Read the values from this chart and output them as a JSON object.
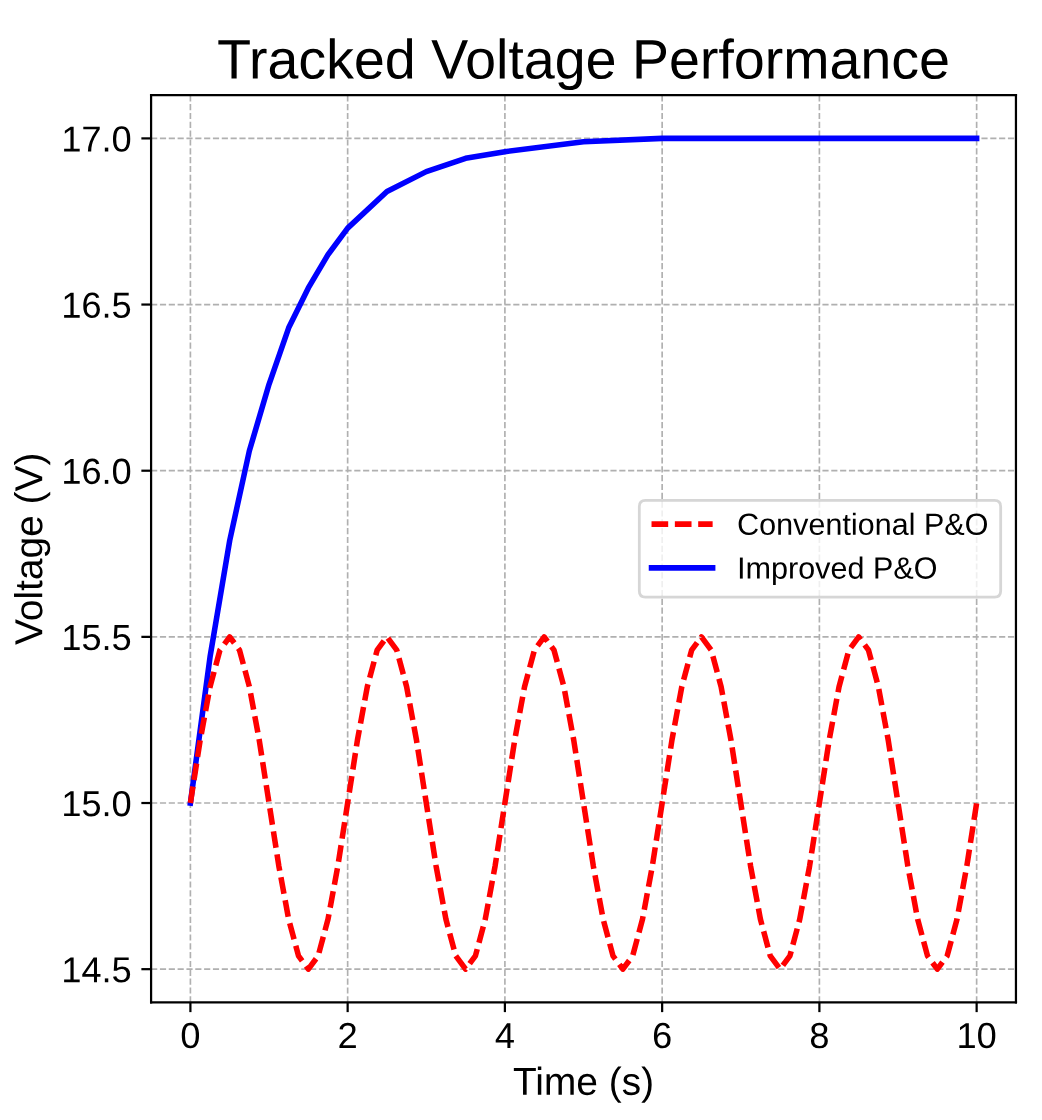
{
  "chart_data": {
    "type": "line",
    "title": "Tracked Voltage Performance",
    "xlabel": "Time (s)",
    "ylabel": "Voltage (V)",
    "xlim": [
      -0.5,
      10.5
    ],
    "ylim": [
      14.4,
      17.13
    ],
    "xticks": [
      0,
      2,
      4,
      6,
      8,
      10
    ],
    "yticks": [
      14.5,
      {
        "value": 15,
        "label": "15.0"
      },
      15.5,
      {
        "value": 16,
        "label": "16.0"
      },
      16.5,
      {
        "value": 17,
        "label": "17.0"
      }
    ],
    "grid": true,
    "legend": "right",
    "series": [
      {
        "name": "Conventional P&O",
        "color": "#ff0000",
        "line_style": "dashed",
        "x": [
          0,
          0.125,
          0.25,
          0.375,
          0.5,
          0.625,
          0.75,
          0.875,
          1,
          1.125,
          1.25,
          1.375,
          1.5,
          1.625,
          1.75,
          1.875,
          2,
          2.125,
          2.25,
          2.375,
          2.5,
          2.625,
          2.75,
          2.875,
          3,
          3.125,
          3.25,
          3.375,
          3.5,
          3.625,
          3.75,
          3.875,
          4,
          4.125,
          4.25,
          4.375,
          4.5,
          4.625,
          4.75,
          4.875,
          5,
          5.125,
          5.25,
          5.375,
          5.5,
          5.625,
          5.75,
          5.875,
          6,
          6.125,
          6.25,
          6.375,
          6.5,
          6.625,
          6.75,
          6.875,
          7,
          7.125,
          7.25,
          7.375,
          7.5,
          7.625,
          7.75,
          7.875,
          8,
          8.125,
          8.25,
          8.375,
          8.5,
          8.625,
          8.75,
          8.875,
          9,
          9.125,
          9.25,
          9.375,
          9.5,
          9.625,
          9.75,
          9.875,
          10
        ],
        "values": [
          15,
          15.19,
          15.35,
          15.46,
          15.5,
          15.46,
          15.35,
          15.19,
          15,
          14.81,
          14.65,
          14.54,
          14.5,
          14.54,
          14.65,
          14.81,
          15,
          15.19,
          15.35,
          15.46,
          15.5,
          15.46,
          15.35,
          15.19,
          15,
          14.81,
          14.65,
          14.54,
          14.5,
          14.54,
          14.65,
          14.81,
          15,
          15.19,
          15.35,
          15.46,
          15.5,
          15.46,
          15.35,
          15.19,
          15,
          14.81,
          14.65,
          14.54,
          14.5,
          14.54,
          14.65,
          14.81,
          15,
          15.19,
          15.35,
          15.46,
          15.5,
          15.46,
          15.35,
          15.19,
          15,
          14.81,
          14.65,
          14.54,
          14.5,
          14.54,
          14.65,
          14.81,
          15,
          15.19,
          15.35,
          15.46,
          15.5,
          15.46,
          15.35,
          15.19,
          15,
          14.81,
          14.65,
          14.54,
          14.5,
          14.54,
          14.65,
          14.81,
          15
        ]
      },
      {
        "name": "Improved P&O",
        "color": "#0000ff",
        "line_style": "solid",
        "x": [
          0,
          0.25,
          0.5,
          0.75,
          1,
          1.25,
          1.5,
          1.75,
          2,
          2.5,
          3,
          3.5,
          4,
          5,
          6,
          7,
          8,
          10
        ],
        "values": [
          15,
          15.44,
          15.79,
          16.06,
          16.26,
          16.43,
          16.55,
          16.65,
          16.73,
          16.84,
          16.9,
          16.94,
          16.96,
          16.99,
          17.0,
          17.0,
          17.0,
          17.0
        ]
      }
    ]
  }
}
